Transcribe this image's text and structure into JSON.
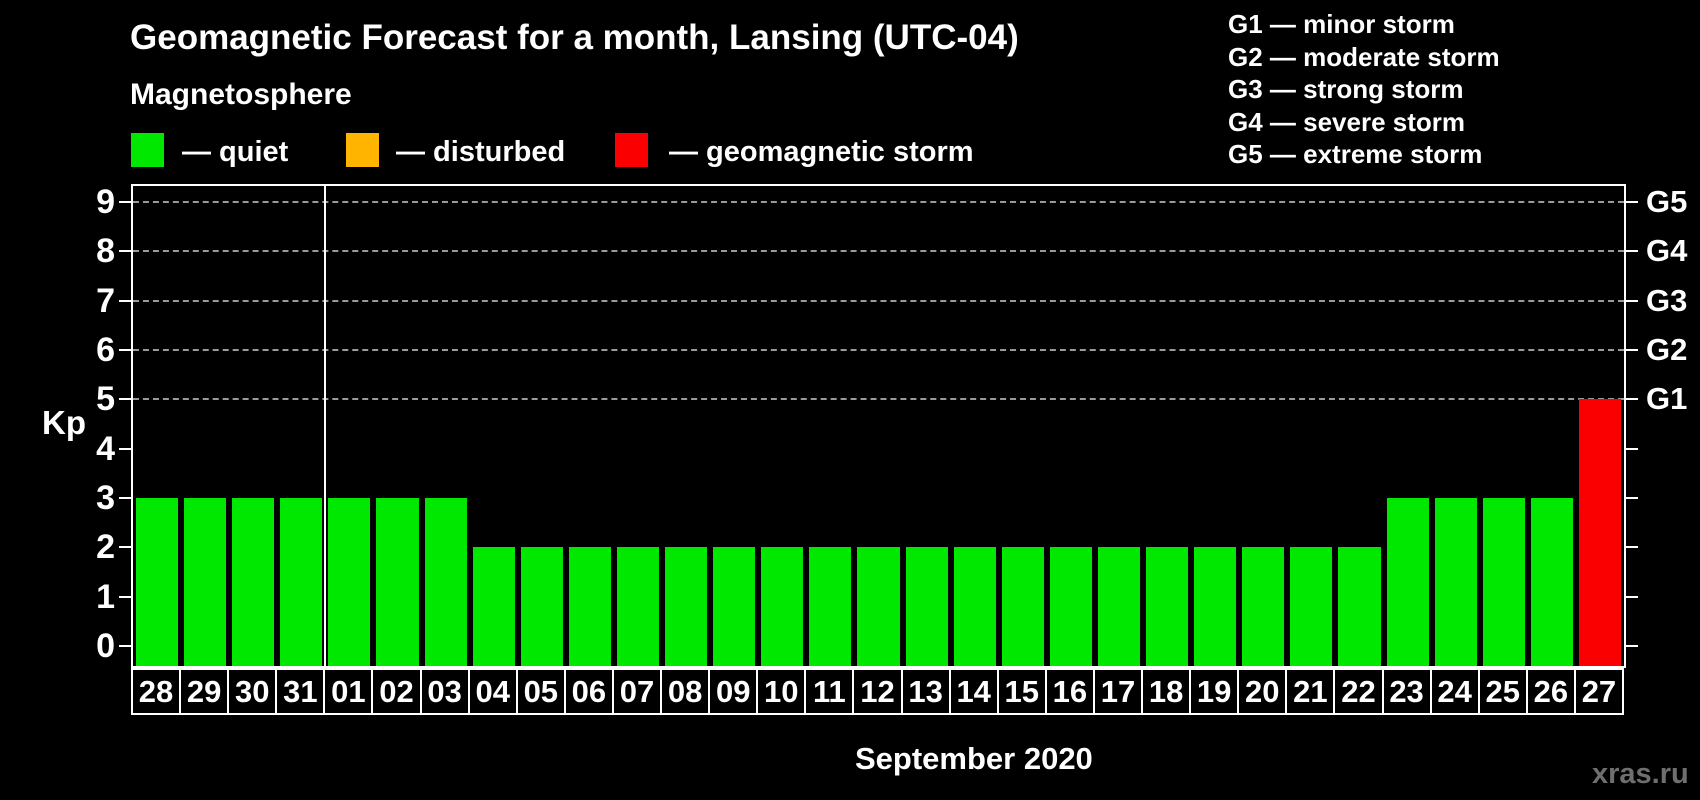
{
  "header": {
    "title": "Geomagnetic Forecast for a month, Lansing (UTC-04)",
    "subtitle": "Magnetosphere"
  },
  "legend": {
    "quiet": {
      "label": "— quiet",
      "color": "#00e800"
    },
    "disturbed": {
      "label": "— disturbed",
      "color": "#ffb400"
    },
    "storm": {
      "label": "— geomagnetic storm",
      "color": "#fa0000"
    }
  },
  "g_legend": {
    "items": [
      "G1 — minor storm",
      "G2 — moderate storm",
      "G3 — strong storm",
      "G4 — severe storm",
      "G5 — extreme storm"
    ]
  },
  "watermark": "xras.ru",
  "chart_data": {
    "type": "bar",
    "title": "Geomagnetic Forecast for a month, Lansing (UTC-04)",
    "ylabel": "Kp",
    "xlabel": "September 2020",
    "categories": [
      "28",
      "29",
      "30",
      "31",
      "01",
      "02",
      "03",
      "04",
      "05",
      "06",
      "07",
      "08",
      "09",
      "10",
      "11",
      "12",
      "13",
      "14",
      "15",
      "16",
      "17",
      "18",
      "19",
      "20",
      "21",
      "22",
      "23",
      "24",
      "25",
      "26",
      "27"
    ],
    "values": [
      3,
      3,
      3,
      3,
      3,
      3,
      3,
      2,
      2,
      2,
      2,
      2,
      2,
      2,
      2,
      2,
      2,
      2,
      2,
      2,
      2,
      2,
      2,
      2,
      2,
      2,
      3,
      3,
      3,
      3,
      5
    ],
    "statuses": [
      "quiet",
      "quiet",
      "quiet",
      "quiet",
      "quiet",
      "quiet",
      "quiet",
      "quiet",
      "quiet",
      "quiet",
      "quiet",
      "quiet",
      "quiet",
      "quiet",
      "quiet",
      "quiet",
      "quiet",
      "quiet",
      "quiet",
      "quiet",
      "quiet",
      "quiet",
      "quiet",
      "quiet",
      "quiet",
      "quiet",
      "quiet",
      "quiet",
      "quiet",
      "quiet",
      "storm"
    ],
    "status_colors": {
      "quiet": "#00e800",
      "disturbed": "#ffb400",
      "storm": "#fa0000"
    },
    "ylim": [
      0,
      9
    ],
    "yticks": [
      0,
      1,
      2,
      3,
      4,
      5,
      6,
      7,
      8,
      9
    ],
    "gridlines_at": [
      5,
      6,
      7,
      8,
      9
    ],
    "right_axis": [
      {
        "kp": 5,
        "label": "G1"
      },
      {
        "kp": 6,
        "label": "G2"
      },
      {
        "kp": 7,
        "label": "G3"
      },
      {
        "kp": 8,
        "label": "G4"
      },
      {
        "kp": 9,
        "label": "G5"
      }
    ],
    "month_separator_after_category": "31",
    "grid": "horizontal dashed at storm levels",
    "legend_position": "top-left"
  }
}
